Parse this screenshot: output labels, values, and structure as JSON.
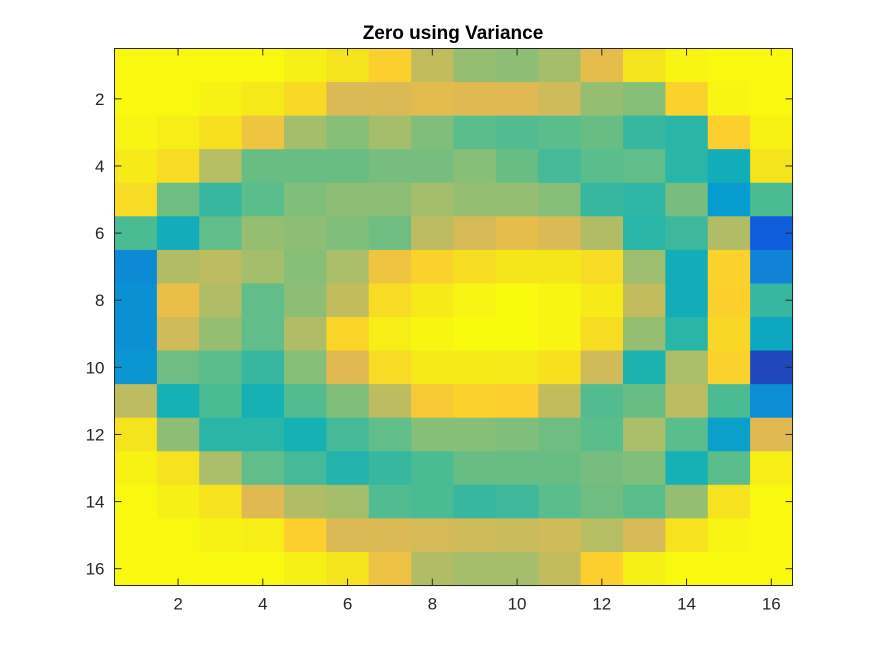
{
  "chart_data": {
    "type": "heatmap",
    "title": "Zero using Variance",
    "xlabel": "",
    "ylabel": "",
    "colormap": "parula",
    "rows": 16,
    "cols": 16,
    "xlim": [
      0.5,
      16.5
    ],
    "ylim": [
      0.5,
      16.5
    ],
    "y_direction": "reverse",
    "x_ticks": [
      2,
      4,
      6,
      8,
      10,
      12,
      14,
      16
    ],
    "y_ticks": [
      2,
      4,
      6,
      8,
      10,
      12,
      14,
      16
    ],
    "x_tick_labels": [
      "2",
      "4",
      "6",
      "8",
      "10",
      "12",
      "14",
      "16"
    ],
    "y_tick_labels": [
      "2",
      "4",
      "6",
      "8",
      "10",
      "12",
      "14",
      "16"
    ],
    "grid": false,
    "values": [
      [
        0.99,
        0.99,
        0.99,
        0.99,
        0.95,
        0.9,
        0.8,
        0.65,
        0.58,
        0.57,
        0.6,
        0.72,
        0.9,
        0.97,
        0.99,
        0.99
      ],
      [
        0.99,
        0.99,
        0.96,
        0.92,
        0.85,
        0.69,
        0.69,
        0.71,
        0.7,
        0.7,
        0.67,
        0.58,
        0.56,
        0.82,
        0.97,
        0.99
      ],
      [
        0.97,
        0.94,
        0.88,
        0.75,
        0.6,
        0.56,
        0.6,
        0.55,
        0.5,
        0.49,
        0.5,
        0.52,
        0.45,
        0.43,
        0.8,
        0.96
      ],
      [
        0.93,
        0.86,
        0.63,
        0.52,
        0.52,
        0.52,
        0.54,
        0.54,
        0.56,
        0.52,
        0.47,
        0.5,
        0.51,
        0.43,
        0.38,
        0.9
      ],
      [
        0.86,
        0.53,
        0.45,
        0.5,
        0.55,
        0.57,
        0.57,
        0.6,
        0.58,
        0.58,
        0.56,
        0.45,
        0.44,
        0.54,
        0.3,
        0.48
      ],
      [
        0.48,
        0.38,
        0.51,
        0.58,
        0.57,
        0.55,
        0.53,
        0.64,
        0.68,
        0.72,
        0.69,
        0.62,
        0.43,
        0.46,
        0.62,
        0.1
      ],
      [
        0.24,
        0.62,
        0.64,
        0.6,
        0.56,
        0.61,
        0.75,
        0.82,
        0.87,
        0.91,
        0.91,
        0.86,
        0.59,
        0.38,
        0.82,
        0.22
      ],
      [
        0.26,
        0.73,
        0.62,
        0.51,
        0.57,
        0.65,
        0.86,
        0.93,
        0.97,
        1.0,
        0.97,
        0.93,
        0.65,
        0.38,
        0.81,
        0.45
      ],
      [
        0.26,
        0.67,
        0.58,
        0.51,
        0.62,
        0.83,
        0.94,
        0.98,
        1.0,
        1.0,
        0.97,
        0.87,
        0.58,
        0.43,
        0.84,
        0.35
      ],
      [
        0.28,
        0.53,
        0.5,
        0.45,
        0.56,
        0.7,
        0.86,
        0.93,
        0.93,
        0.92,
        0.88,
        0.67,
        0.41,
        0.61,
        0.82,
        0.06
      ],
      [
        0.64,
        0.4,
        0.48,
        0.4,
        0.49,
        0.55,
        0.64,
        0.78,
        0.82,
        0.8,
        0.65,
        0.49,
        0.52,
        0.64,
        0.48,
        0.25
      ],
      [
        0.9,
        0.57,
        0.43,
        0.43,
        0.4,
        0.47,
        0.51,
        0.56,
        0.56,
        0.55,
        0.53,
        0.5,
        0.61,
        0.5,
        0.32,
        0.7
      ],
      [
        0.96,
        0.89,
        0.61,
        0.51,
        0.47,
        0.42,
        0.45,
        0.48,
        0.52,
        0.52,
        0.52,
        0.54,
        0.55,
        0.4,
        0.5,
        0.94
      ],
      [
        0.99,
        0.95,
        0.89,
        0.7,
        0.62,
        0.6,
        0.49,
        0.48,
        0.45,
        0.46,
        0.5,
        0.53,
        0.5,
        0.58,
        0.89,
        0.99
      ],
      [
        0.99,
        0.99,
        0.96,
        0.94,
        0.8,
        0.69,
        0.69,
        0.68,
        0.67,
        0.66,
        0.67,
        0.63,
        0.68,
        0.89,
        0.97,
        0.99
      ],
      [
        0.99,
        0.99,
        0.99,
        0.99,
        0.95,
        0.9,
        0.74,
        0.62,
        0.6,
        0.6,
        0.65,
        0.8,
        0.95,
        0.99,
        0.99,
        0.99
      ]
    ]
  }
}
